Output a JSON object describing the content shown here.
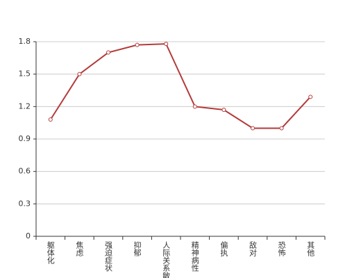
{
  "chart_data": {
    "type": "line",
    "categories": [
      "躯体化",
      "焦虑",
      "强迫症状",
      "抑郁",
      "人际关系敏感",
      "精神病性",
      "偏执",
      "敌对",
      "恐怖",
      "其他"
    ],
    "values": [
      1.08,
      1.5,
      1.7,
      1.77,
      1.78,
      1.2,
      1.17,
      1.0,
      1.0,
      1.29
    ],
    "color": "#b33a3a",
    "ylim": [
      0,
      1.8
    ],
    "yticks": [
      0,
      0.3,
      0.6,
      0.9,
      1.2,
      1.5,
      1.8
    ],
    "grid": true
  }
}
